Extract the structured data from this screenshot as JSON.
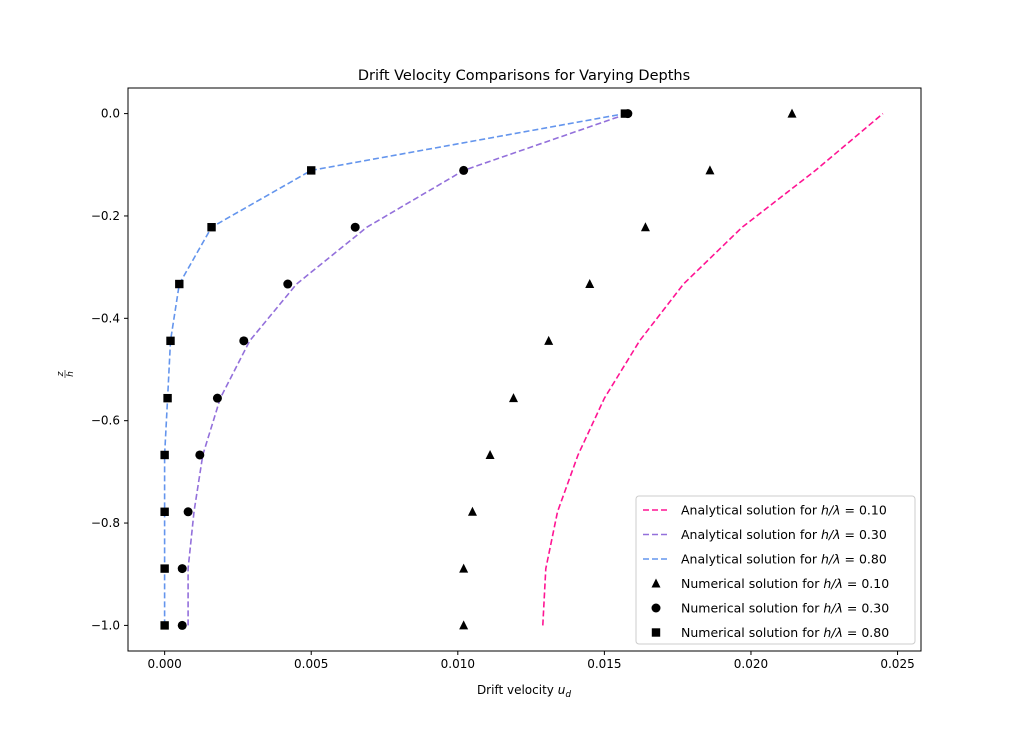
{
  "chart_data": {
    "type": "line",
    "title": "Drift Velocity Comparisons for Varying Depths",
    "xlabel": "Drift velocity",
    "xlabel_symbol": "u",
    "xlabel_sub": "d",
    "ylabel_num": "z",
    "ylabel_den": "h",
    "xlim": [
      -0.00125,
      0.0258
    ],
    "ylim": [
      -1.05,
      0.05
    ],
    "xticks": [
      0.0,
      0.005,
      0.01,
      0.015,
      0.02,
      0.025
    ],
    "xtick_labels": [
      "0.000",
      "0.005",
      "0.010",
      "0.015",
      "0.020",
      "0.025"
    ],
    "yticks": [
      0.0,
      -0.2,
      -0.4,
      -0.6,
      -0.8,
      -1.0
    ],
    "ytick_labels": [
      "0.0",
      "−0.2",
      "−0.4",
      "−0.6",
      "−0.8",
      "−1.0"
    ],
    "grid": false,
    "legend_position": "lower-right",
    "series": [
      {
        "name": "Analytical solution for h/λ = 0.10",
        "legend_prefix": "Analytical solution for ",
        "legend_ratio": "0.10",
        "kind": "line",
        "style": "dashed",
        "color": "#ff1493",
        "points": [
          [
            0.0129,
            -1.0
          ],
          [
            0.013,
            -0.889
          ],
          [
            0.0134,
            -0.778
          ],
          [
            0.0141,
            -0.667
          ],
          [
            0.015,
            -0.556
          ],
          [
            0.0162,
            -0.444
          ],
          [
            0.0177,
            -0.333
          ],
          [
            0.0197,
            -0.222
          ],
          [
            0.0222,
            -0.111
          ],
          [
            0.0245,
            0.0
          ]
        ]
      },
      {
        "name": "Analytical solution for h/λ = 0.30",
        "legend_prefix": "Analytical solution for ",
        "legend_ratio": "0.30",
        "kind": "line",
        "style": "dashed",
        "color": "#9370db",
        "points": [
          [
            0.0008,
            -1.0
          ],
          [
            0.0008,
            -0.889
          ],
          [
            0.001,
            -0.778
          ],
          [
            0.0013,
            -0.667
          ],
          [
            0.0019,
            -0.556
          ],
          [
            0.0029,
            -0.444
          ],
          [
            0.0045,
            -0.333
          ],
          [
            0.0069,
            -0.222
          ],
          [
            0.0102,
            -0.111
          ],
          [
            0.0158,
            0.0
          ]
        ]
      },
      {
        "name": "Analytical solution for h/λ = 0.80",
        "legend_prefix": "Analytical solution for ",
        "legend_ratio": "0.80",
        "kind": "line",
        "style": "dashed",
        "color": "#6495ed",
        "points": [
          [
            0.0,
            -1.0
          ],
          [
            0.0,
            -0.889
          ],
          [
            0.0,
            -0.778
          ],
          [
            0.0,
            -0.667
          ],
          [
            0.0001,
            -0.556
          ],
          [
            0.0002,
            -0.444
          ],
          [
            0.0005,
            -0.333
          ],
          [
            0.0016,
            -0.222
          ],
          [
            0.005,
            -0.111
          ],
          [
            0.0157,
            0.0
          ]
        ]
      },
      {
        "name": "Numerical solution for h/λ = 0.10",
        "legend_prefix": "Numerical solution for ",
        "legend_ratio": "0.10",
        "kind": "scatter",
        "marker": "triangle",
        "color": "#000000",
        "points": [
          [
            0.0102,
            -1.0
          ],
          [
            0.0102,
            -0.889
          ],
          [
            0.0105,
            -0.778
          ],
          [
            0.0111,
            -0.667
          ],
          [
            0.0119,
            -0.556
          ],
          [
            0.0131,
            -0.444
          ],
          [
            0.0145,
            -0.333
          ],
          [
            0.0164,
            -0.222
          ],
          [
            0.0186,
            -0.111
          ],
          [
            0.0214,
            0.0
          ]
        ]
      },
      {
        "name": "Numerical solution for h/λ = 0.30",
        "legend_prefix": "Numerical solution for ",
        "legend_ratio": "0.30",
        "kind": "scatter",
        "marker": "circle",
        "color": "#000000",
        "points": [
          [
            0.0006,
            -1.0
          ],
          [
            0.0006,
            -0.889
          ],
          [
            0.0008,
            -0.778
          ],
          [
            0.0012,
            -0.667
          ],
          [
            0.0018,
            -0.556
          ],
          [
            0.0027,
            -0.444
          ],
          [
            0.0042,
            -0.333
          ],
          [
            0.0065,
            -0.222
          ],
          [
            0.0102,
            -0.111
          ],
          [
            0.0158,
            0.0
          ]
        ]
      },
      {
        "name": "Numerical solution for h/λ = 0.80",
        "legend_prefix": "Numerical solution for ",
        "legend_ratio": "0.80",
        "kind": "scatter",
        "marker": "square",
        "color": "#000000",
        "points": [
          [
            0.0,
            -1.0
          ],
          [
            0.0,
            -0.889
          ],
          [
            0.0,
            -0.778
          ],
          [
            0.0,
            -0.667
          ],
          [
            0.0001,
            -0.556
          ],
          [
            0.0002,
            -0.444
          ],
          [
            0.0005,
            -0.333
          ],
          [
            0.0016,
            -0.222
          ],
          [
            0.005,
            -0.111
          ],
          [
            0.0157,
            0.0
          ]
        ]
      }
    ]
  }
}
